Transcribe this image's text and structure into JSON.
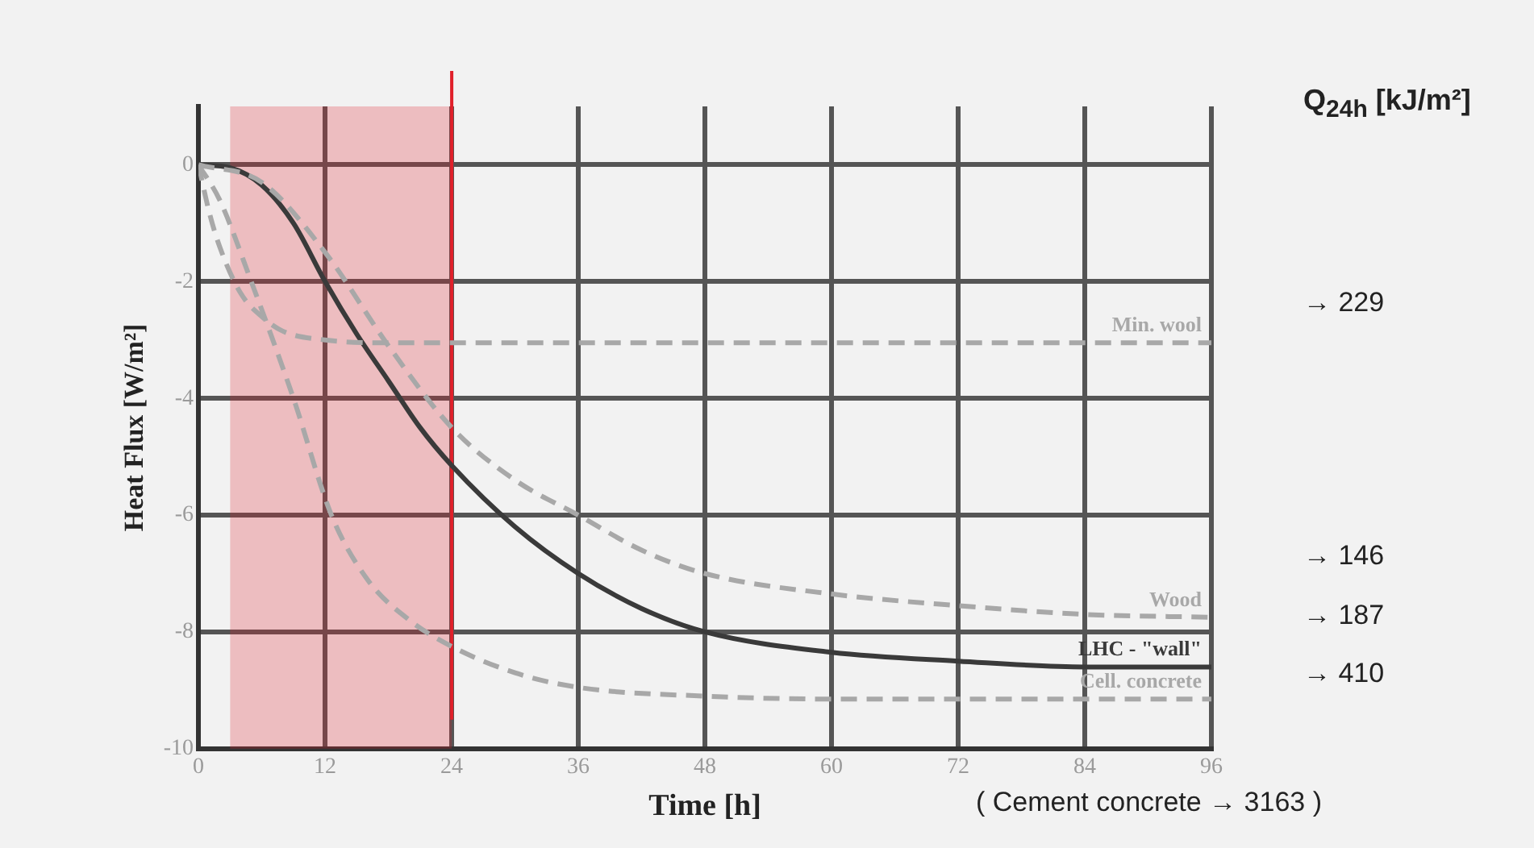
{
  "chart_data": {
    "type": "line",
    "xlabel": "Time [h]",
    "ylabel": "Heat Flux [W/m²]",
    "xlim": [
      0,
      96
    ],
    "ylim": [
      -10,
      1
    ],
    "xticks": [
      0,
      12,
      24,
      36,
      48,
      60,
      72,
      84,
      96
    ],
    "yticks": [
      0,
      -2,
      -4,
      -6,
      -8,
      -10
    ],
    "grid": true,
    "legend": false,
    "marker": "none",
    "series": [
      {
        "name": "Min. wool",
        "color": "#a8a8a8",
        "line_style": "dashed",
        "x": [
          0,
          1,
          2,
          4,
          6,
          8,
          12,
          18,
          24,
          36,
          48,
          60,
          72,
          84,
          96
        ],
        "values": [
          0,
          -0.8,
          -1.4,
          -2.2,
          -2.6,
          -2.85,
          -3.0,
          -3.05,
          -3.05,
          -3.05,
          -3.05,
          -3.05,
          -3.05,
          -3.05,
          -3.05
        ]
      },
      {
        "name": "Wood",
        "color": "#a8a8a8",
        "line_style": "dashed",
        "x": [
          0,
          6,
          12,
          18,
          24,
          30,
          36,
          42,
          48,
          60,
          72,
          84,
          96
        ],
        "values": [
          0,
          -0.3,
          -1.5,
          -3.1,
          -4.5,
          -5.4,
          -6.0,
          -6.6,
          -7.0,
          -7.35,
          -7.55,
          -7.7,
          -7.75
        ]
      },
      {
        "name": "LHC - \"wall\"",
        "color": "#3a3a3a",
        "line_style": "solid",
        "x": [
          0,
          3,
          6,
          9,
          12,
          15,
          18,
          21,
          24,
          30,
          36,
          42,
          48,
          60,
          72,
          84,
          96
        ],
        "values": [
          0,
          -0.05,
          -0.35,
          -1.0,
          -2.0,
          -2.9,
          -3.7,
          -4.5,
          -5.15,
          -6.2,
          -7.0,
          -7.6,
          -8.0,
          -8.35,
          -8.5,
          -8.6,
          -8.6
        ]
      },
      {
        "name": "Cell. concrete",
        "color": "#a8a8a8",
        "line_style": "dashed",
        "x": [
          0,
          2,
          5,
          9,
          12.6,
          16,
          20,
          24,
          30,
          36,
          48,
          60,
          72,
          84,
          96
        ],
        "values": [
          0,
          -0.6,
          -2,
          -4,
          -6,
          -7.1,
          -7.8,
          -8.25,
          -8.7,
          -8.95,
          -9.1,
          -9.15,
          -9.15,
          -9.15,
          -9.15
        ]
      }
    ],
    "ref_lines": [
      {
        "axis": "x",
        "value": 24,
        "color": "#e0202a"
      }
    ],
    "bands": [
      {
        "axis": "x",
        "from": 3,
        "to": 24,
        "color": "#e0202a"
      }
    ],
    "annotations": [
      "Q$_{24h}$ [kJ/m²]",
      "→ 229",
      "→ 146",
      "→ 187",
      "→ 410",
      "( Cement concrete → 3163 )"
    ]
  }
}
